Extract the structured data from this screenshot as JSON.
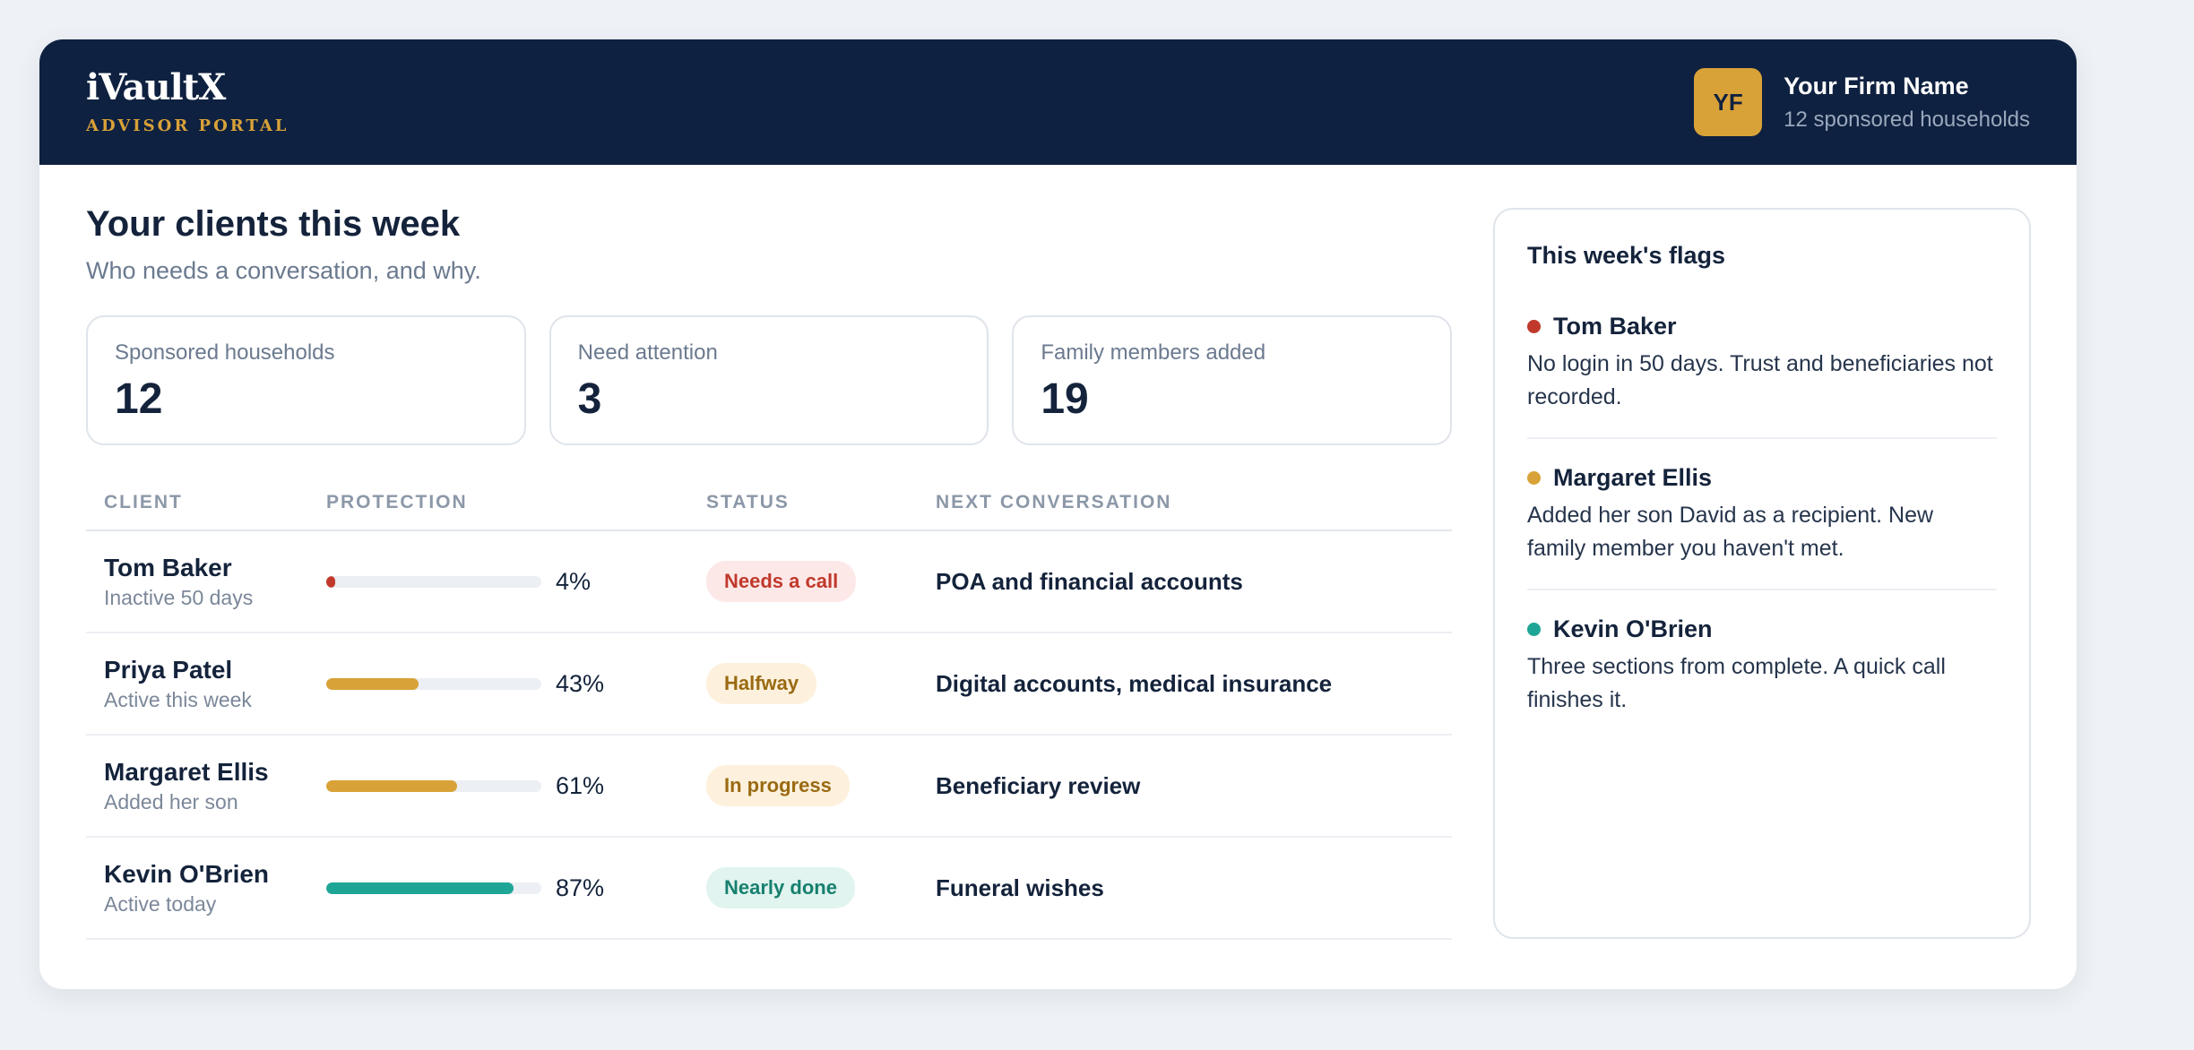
{
  "header": {
    "brand": "iVaultX",
    "brand_sub": "ADVISOR PORTAL",
    "firm_initials": "YF",
    "firm_name": "Your Firm Name",
    "firm_sub": "12 sponsored households"
  },
  "main": {
    "title": "Your clients this week",
    "subtitle": "Who needs a conversation, and why."
  },
  "stats": [
    {
      "label": "Sponsored households",
      "value": "12"
    },
    {
      "label": "Need attention",
      "value": "3"
    },
    {
      "label": "Family members added",
      "value": "19"
    }
  ],
  "table": {
    "headers": {
      "client": "CLIENT",
      "protection": "PROTECTION",
      "status": "STATUS",
      "next": "NEXT CONVERSATION"
    },
    "rows": [
      {
        "name": "Tom Baker",
        "sub": "Inactive 50 days",
        "protection": 0.04,
        "pct": "4%",
        "status": "Needs a call",
        "next": "POA and financial accounts"
      },
      {
        "name": "Priya Patel",
        "sub": "Active this week",
        "protection": 0.43,
        "pct": "43%",
        "status": "Halfway",
        "next": "Digital accounts, medical insurance"
      },
      {
        "name": "Margaret Ellis",
        "sub": "Added her son",
        "protection": 0.61,
        "pct": "61%",
        "status": "In progress",
        "next": "Beneficiary review"
      },
      {
        "name": "Kevin O'Brien",
        "sub": "Active today",
        "protection": 0.87,
        "pct": "87%",
        "status": "Nearly done",
        "next": "Funeral wishes"
      }
    ]
  },
  "flags": {
    "title": "This week's flags",
    "items": [
      {
        "name": "Tom Baker",
        "text": "No login in 50 days. Trust and beneficiaries not recorded."
      },
      {
        "name": "Margaret Ellis",
        "text": "Added her son David as a recipient. New family member you haven't met."
      },
      {
        "name": "Kevin O'Brien",
        "text": "Three sections from complete. A quick call finishes it."
      }
    ]
  },
  "colors": {
    "header_bg": "#0f2140",
    "accent_gold": "#d9a238",
    "red": "#c0392b",
    "gold": "#d9a238",
    "teal": "#1fa596",
    "pill_red_bg": "#fde8e8",
    "pill_red_text": "#c0392b",
    "pill_gold_bg": "#fdf1dd",
    "pill_gold_text": "#9a6a12",
    "pill_teal_bg": "#e1f4ef",
    "pill_teal_text": "#17806f"
  }
}
